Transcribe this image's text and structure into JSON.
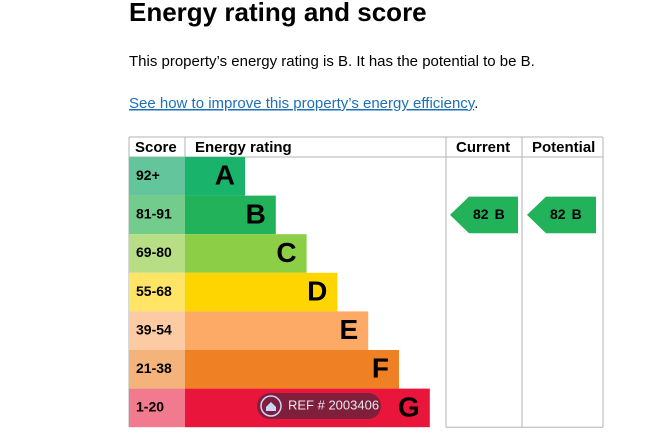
{
  "header": {
    "title": "Energy rating and score"
  },
  "summary": "This property’s energy rating is B. It has the potential to be B.",
  "link": {
    "text": "See how to improve this property’s energy efficiency",
    "after": "."
  },
  "table": {
    "headers": [
      "Score",
      "Energy rating",
      "Current",
      "Potential"
    ],
    "bands": [
      {
        "score": "92+",
        "letter": "A",
        "color": "#19b36b",
        "score_color": "#63c59c"
      },
      {
        "score": "81-91",
        "letter": "B",
        "color": "#22b259",
        "score_color": "#72cd8c"
      },
      {
        "score": "69-80",
        "letter": "C",
        "color": "#8ccf47",
        "score_color": "#b7de85"
      },
      {
        "score": "55-68",
        "letter": "D",
        "color": "#ffd500",
        "score_color": "#ffe466"
      },
      {
        "score": "39-54",
        "letter": "E",
        "color": "#fcaa65",
        "score_color": "#fdcba3"
      },
      {
        "score": "21-38",
        "letter": "F",
        "color": "#ef8023",
        "score_color": "#f5b37c"
      },
      {
        "score": "1-20",
        "letter": "G",
        "color": "#e9153b",
        "score_color": "#f27a8e"
      }
    ],
    "current": {
      "score": 82,
      "letter": "B"
    },
    "potential": {
      "score": 82,
      "letter": "B"
    }
  },
  "watermark": "REF # 2003406"
}
